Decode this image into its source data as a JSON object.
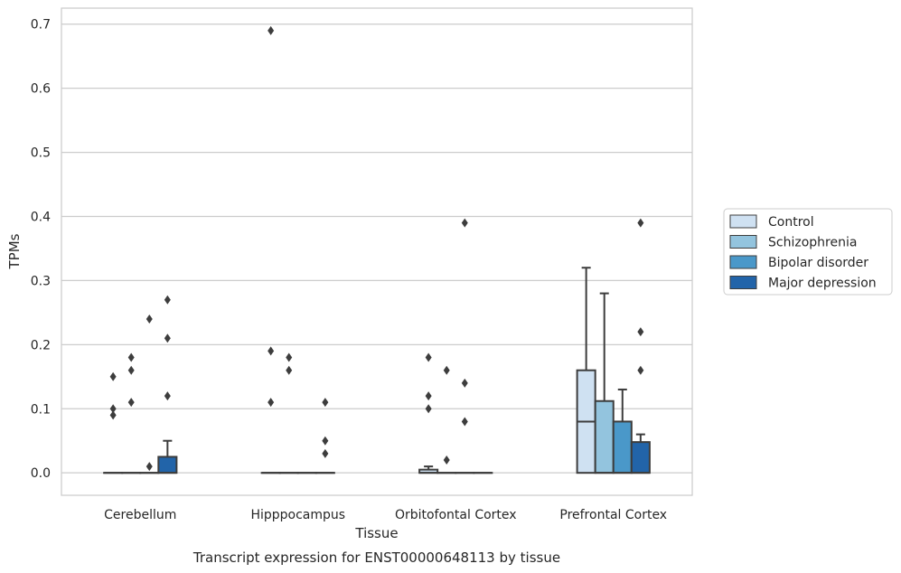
{
  "chart_data": {
    "type": "box",
    "caption": "Transcript expression for ENST00000648113 by tissue",
    "xlabel": "Tissue",
    "ylabel": "TPMs",
    "ylim": [
      -0.035,
      0.725
    ],
    "yticks": [
      "0.0",
      "0.1",
      "0.2",
      "0.3",
      "0.4",
      "0.5",
      "0.6",
      "0.7"
    ],
    "grid": true,
    "legend_position": "right",
    "categories": [
      "Cerebellum",
      "Hipppocampus",
      "Orbitofontal Cortex",
      "Prefrontal Cortex"
    ],
    "series": [
      {
        "name": "Control",
        "color": "#cfe1f2",
        "boxes": [
          {
            "q1": 0,
            "median": 0,
            "q3": 0,
            "whisker_low": 0,
            "whisker_high": 0,
            "outliers": [
              0.09,
              0.1,
              0.15
            ]
          },
          {
            "q1": 0,
            "median": 0,
            "q3": 0,
            "whisker_low": 0,
            "whisker_high": 0,
            "outliers": [
              0.11,
              0.19,
              0.69
            ]
          },
          {
            "q1": 0,
            "median": 0,
            "q3": 0.005,
            "whisker_low": 0,
            "whisker_high": 0.01,
            "outliers": [
              0.1,
              0.12,
              0.18
            ]
          },
          {
            "q1": 0,
            "median": 0.08,
            "q3": 0.16,
            "whisker_low": 0,
            "whisker_high": 0.32,
            "outliers": []
          }
        ]
      },
      {
        "name": "Schizophrenia",
        "color": "#93c4de",
        "boxes": [
          {
            "q1": 0,
            "median": 0,
            "q3": 0,
            "whisker_low": 0,
            "whisker_high": 0,
            "outliers": [
              0.11,
              0.16,
              0.18
            ]
          },
          {
            "q1": 0,
            "median": 0,
            "q3": 0,
            "whisker_low": 0,
            "whisker_high": 0,
            "outliers": [
              0.16,
              0.18
            ]
          },
          {
            "q1": 0,
            "median": 0,
            "q3": 0,
            "whisker_low": 0,
            "whisker_high": 0,
            "outliers": [
              0.02,
              0.16
            ]
          },
          {
            "q1": 0,
            "median": 0,
            "q3": 0.112,
            "whisker_low": 0,
            "whisker_high": 0.28,
            "outliers": []
          }
        ]
      },
      {
        "name": "Bipolar disorder",
        "color": "#4a98c9",
        "boxes": [
          {
            "q1": 0,
            "median": 0,
            "q3": 0,
            "whisker_low": 0,
            "whisker_high": 0,
            "outliers": [
              0.01,
              0.24
            ]
          },
          {
            "q1": 0,
            "median": 0,
            "q3": 0,
            "whisker_low": 0,
            "whisker_high": 0,
            "outliers": []
          },
          {
            "q1": 0,
            "median": 0,
            "q3": 0,
            "whisker_low": 0,
            "whisker_high": 0,
            "outliers": [
              0.08,
              0.14,
              0.39
            ]
          },
          {
            "q1": 0,
            "median": 0,
            "q3": 0.08,
            "whisker_low": 0,
            "whisker_high": 0.13,
            "outliers": []
          }
        ]
      },
      {
        "name": "Major depression",
        "color": "#2264a9",
        "boxes": [
          {
            "q1": 0,
            "median": 0,
            "q3": 0.025,
            "whisker_low": 0,
            "whisker_high": 0.05,
            "outliers": [
              0.12,
              0.21,
              0.27
            ]
          },
          {
            "q1": 0,
            "median": 0,
            "q3": 0,
            "whisker_low": 0,
            "whisker_high": 0,
            "outliers": [
              0.03,
              0.05,
              0.11
            ]
          },
          {
            "q1": 0,
            "median": 0,
            "q3": 0,
            "whisker_low": 0,
            "whisker_high": 0,
            "outliers": []
          },
          {
            "q1": 0,
            "median": 0,
            "q3": 0.048,
            "whisker_low": 0,
            "whisker_high": 0.06,
            "outliers": [
              0.16,
              0.22,
              0.39
            ]
          }
        ]
      }
    ]
  }
}
